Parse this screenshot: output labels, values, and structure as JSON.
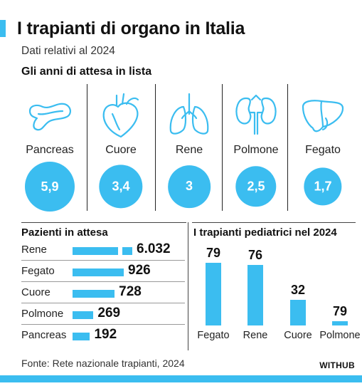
{
  "header": {
    "title": "I trapianti di organo in Italia",
    "subtitle": "Dati relativi al 2024",
    "section": "Gli anni di attesa in lista"
  },
  "organs": [
    {
      "name": "Pancreas",
      "years": "5,9",
      "icon": "pancreas-icon"
    },
    {
      "name": "Cuore",
      "years": "3,4",
      "icon": "heart-icon"
    },
    {
      "name": "Rene",
      "years": "3",
      "icon": "lungs-icon"
    },
    {
      "name": "Polmone",
      "years": "2,5",
      "icon": "kidneys-icon"
    },
    {
      "name": "Fegato",
      "years": "1,7",
      "icon": "liver-icon"
    }
  ],
  "waiting": {
    "title": "Pazienti in attesa",
    "rows": [
      {
        "name": "Rene",
        "value": "6.032"
      },
      {
        "name": "Fegato",
        "value": "926"
      },
      {
        "name": "Cuore",
        "value": "728"
      },
      {
        "name": "Polmone",
        "value": "269"
      },
      {
        "name": "Pancreas",
        "value": "192"
      }
    ]
  },
  "pediatric": {
    "title": "I trapianti pediatrici nel 2024",
    "bars": [
      {
        "name": "Fegato",
        "value": "79"
      },
      {
        "name": "Rene",
        "value": "76"
      },
      {
        "name": "Cuore",
        "value": "32"
      },
      {
        "name": "Polmone",
        "value": "79"
      }
    ]
  },
  "footer": {
    "source": "Fonte: Rete nazionale trapianti, 2024",
    "brand": "WITHUB"
  },
  "colors": {
    "accent": "#3bbdf0"
  },
  "chart_data": [
    {
      "type": "bar",
      "title": "Gli anni di attesa in lista",
      "categories": [
        "Pancreas",
        "Cuore",
        "Rene",
        "Polmone",
        "Fegato"
      ],
      "values": [
        5.9,
        3.4,
        3,
        2.5,
        1.7
      ]
    },
    {
      "type": "bar",
      "title": "Pazienti in attesa",
      "categories": [
        "Rene",
        "Fegato",
        "Cuore",
        "Polmone",
        "Pancreas"
      ],
      "values": [
        6032,
        926,
        728,
        269,
        192
      ]
    },
    {
      "type": "bar",
      "title": "I trapianti pediatrici nel 2024",
      "categories": [
        "Fegato",
        "Rene",
        "Cuore",
        "Polmone"
      ],
      "values": [
        79,
        76,
        32,
        79
      ]
    }
  ]
}
